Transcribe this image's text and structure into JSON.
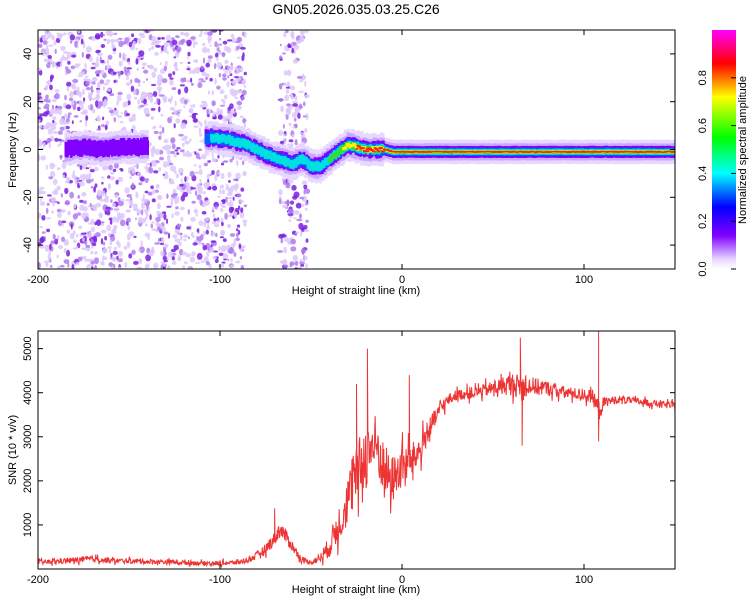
{
  "chart_data": [
    {
      "type": "heatmap",
      "title": "GN05.2026.035.03.25.C26",
      "xlabel": "Height of straight line (km)",
      "ylabel": "Frequency (Hz)",
      "xlim": [
        -200,
        150
      ],
      "ylim": [
        -50,
        50
      ],
      "xticks": [
        -200,
        -100,
        0,
        100
      ],
      "xtick_labels": [
        "-200",
        "-100",
        "0",
        "100"
      ],
      "yticks": [
        -40,
        -20,
        0,
        20,
        40
      ],
      "ytick_labels": [
        "-40",
        "-20",
        "0",
        "20",
        "40"
      ],
      "colorbar": {
        "label": "Normalized spectral amplitude",
        "range": [
          0,
          1
        ],
        "ticks": [
          0.0,
          0.2,
          0.4,
          0.6,
          0.8
        ],
        "tick_labels": [
          "0.0",
          "0.2",
          "0.4",
          "0.6",
          "0.8"
        ],
        "colors": [
          "#ff00ff",
          "#ff0000",
          "#ffff00",
          "#00ff00",
          "#00ffff",
          "#0000ff",
          "#8000ff",
          "#e8d8ff"
        ]
      },
      "noise_regions": [
        {
          "x_start": -200,
          "x_end": -86,
          "freq_min": -50,
          "freq_max": 50,
          "level": 0.1
        },
        {
          "x_start": -67,
          "x_end": -52,
          "freq_min": -50,
          "freq_max": 50,
          "level": 0.1
        }
      ],
      "ridge": {
        "x": [
          -185,
          -175,
          -165,
          -155,
          -145,
          -105,
          -95,
          -85,
          -75,
          -68,
          -60,
          -55,
          -50,
          -45,
          -40,
          -35,
          -30,
          -25,
          -20,
          -15,
          -10,
          -5,
          0,
          10,
          20,
          40,
          60,
          80,
          100,
          120,
          150
        ],
        "freq": [
          0,
          1,
          0,
          1,
          1,
          5,
          4,
          2,
          -2,
          -4,
          -6,
          -4,
          -7,
          -7,
          -4,
          -1,
          2,
          1,
          0,
          0,
          0,
          -1,
          -1,
          -1,
          -1,
          -1,
          -1,
          -1,
          -1,
          -1,
          -1
        ],
        "amplitude": [
          0.3,
          0.3,
          0.3,
          0.3,
          0.25,
          0.45,
          0.5,
          0.55,
          0.5,
          0.5,
          0.45,
          0.45,
          0.5,
          0.5,
          0.6,
          0.7,
          0.8,
          0.85,
          0.9,
          0.9,
          0.95,
          0.95,
          0.95,
          0.95,
          0.95,
          0.95,
          0.95,
          0.95,
          0.95,
          0.95,
          0.95
        ]
      }
    },
    {
      "type": "line",
      "xlabel": "Height of straight line (km)",
      "ylabel": "SNR (10 * v/v)",
      "xlim": [
        -200,
        150
      ],
      "ylim": [
        0,
        5400
      ],
      "xticks": [
        -200,
        -100,
        0,
        100
      ],
      "xtick_labels": [
        "-200",
        "-100",
        "0",
        "100"
      ],
      "yticks": [
        1000,
        2000,
        3000,
        4000,
        5000
      ],
      "ytick_labels": [
        "1000",
        "2000",
        "3000",
        "4000",
        "5000"
      ],
      "series": [
        {
          "name": "SNR",
          "color": "#ee3333",
          "x": [
            -200,
            -190,
            -180,
            -170,
            -160,
            -150,
            -140,
            -130,
            -120,
            -110,
            -100,
            -90,
            -85,
            -80,
            -75,
            -70,
            -67,
            -64,
            -60,
            -55,
            -50,
            -45,
            -40,
            -36,
            -32,
            -28,
            -24,
            -20,
            -17,
            -14,
            -10,
            -6,
            -2,
            2,
            6,
            10,
            14,
            18,
            22,
            26,
            30,
            40,
            50,
            60,
            65,
            70,
            80,
            90,
            100,
            105,
            108,
            112,
            120,
            130,
            140,
            150
          ],
          "mean": [
            150,
            170,
            200,
            230,
            190,
            180,
            170,
            160,
            150,
            130,
            130,
            150,
            200,
            300,
            450,
            700,
            900,
            750,
            500,
            200,
            150,
            250,
            500,
            900,
            1300,
            1800,
            2200,
            2600,
            2800,
            2800,
            2300,
            2000,
            2200,
            2400,
            2500,
            2700,
            3100,
            3400,
            3700,
            3850,
            3950,
            4000,
            4100,
            4200,
            4150,
            4150,
            4100,
            4000,
            3950,
            3900,
            3600,
            3800,
            3850,
            3800,
            3750,
            3700
          ],
          "jitter": [
            100,
            110,
            120,
            130,
            110,
            100,
            100,
            100,
            100,
            90,
            90,
            100,
            120,
            160,
            220,
            300,
            350,
            300,
            220,
            120,
            100,
            200,
            450,
            700,
            900,
            1100,
            1300,
            1500,
            1400,
            1300,
            1100,
            1000,
            900,
            800,
            700,
            600,
            500,
            400,
            300,
            250,
            220,
            250,
            300,
            450,
            500,
            400,
            300,
            250,
            250,
            300,
            500,
            200,
            150,
            150,
            150,
            150
          ],
          "peaks": [
            {
              "x": -70,
              "y": 1380
            },
            {
              "x": -19,
              "y": 5000
            },
            {
              "x": -25,
              "y": 4200
            },
            {
              "x": 4,
              "y": 4400
            },
            {
              "x": 65,
              "y": 5250
            },
            {
              "x": 108,
              "y": 5400
            },
            {
              "x": 108,
              "y": 2900
            },
            {
              "x": 66,
              "y": 2800
            }
          ]
        }
      ]
    }
  ]
}
